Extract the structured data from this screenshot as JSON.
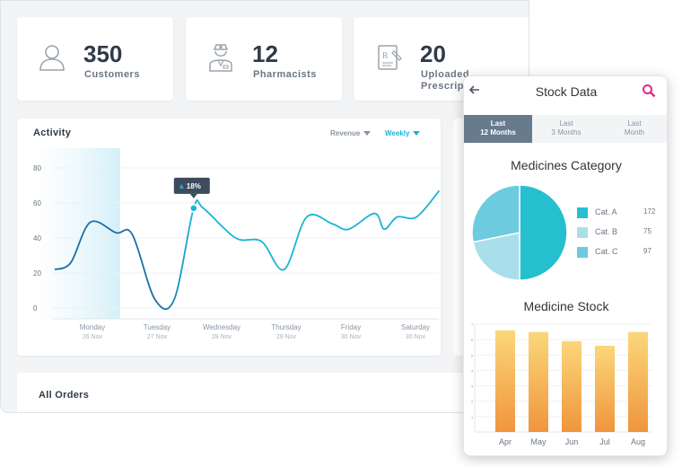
{
  "stats": [
    {
      "value": "350",
      "label": "Customers",
      "icon": "user-icon"
    },
    {
      "value": "12",
      "label": "Pharmacists",
      "icon": "pharmacist-icon"
    },
    {
      "value": "20",
      "label_lines": [
        "Uploaded",
        "Prescriptio"
      ],
      "icon": "prescription-icon"
    }
  ],
  "activity": {
    "title": "Activity",
    "metric_dropdown": "Revenue",
    "period_dropdown": "Weekly",
    "tooltip": "18%",
    "chart_data": {
      "type": "line",
      "x": [
        "Monday 26 Nov",
        "Tuesday 27 Nov",
        "Wednesday 28 Nov",
        "Thursday 29 Nov",
        "Friday 30 Nov",
        "Saturday 30 Nov"
      ],
      "tick_days": [
        "Monday",
        "Tuesday",
        "Wednesday",
        "Thursday",
        "Friday",
        "Saturday"
      ],
      "tick_dates": [
        "26 Nov",
        "27 Nov",
        "28 Nov",
        "29 Nov",
        "30 Nov",
        "30 Nov"
      ],
      "yticks": [
        "80",
        "60",
        "40",
        "20",
        "0"
      ],
      "ylim": [
        0,
        80
      ],
      "highlighted_index": 1,
      "points": [
        {
          "x": 0.0,
          "y": 22
        },
        {
          "x": 0.25,
          "y": 26
        },
        {
          "x": 0.55,
          "y": 49
        },
        {
          "x": 0.95,
          "y": 43
        },
        {
          "x": 1.2,
          "y": 42
        },
        {
          "x": 1.55,
          "y": 5
        },
        {
          "x": 1.85,
          "y": 5
        },
        {
          "x": 2.15,
          "y": 57
        },
        {
          "x": 2.3,
          "y": 57
        },
        {
          "x": 2.8,
          "y": 40
        },
        {
          "x": 3.2,
          "y": 38
        },
        {
          "x": 3.55,
          "y": 22
        },
        {
          "x": 3.9,
          "y": 52
        },
        {
          "x": 4.3,
          "y": 48
        },
        {
          "x": 4.55,
          "y": 45
        },
        {
          "x": 4.95,
          "y": 54
        },
        {
          "x": 5.1,
          "y": 45
        },
        {
          "x": 5.3,
          "y": 52
        },
        {
          "x": 5.6,
          "y": 52
        },
        {
          "x": 5.95,
          "y": 67
        }
      ],
      "colors": {
        "line": "#1ab3d8",
        "line_dark": "#1a6fa8"
      }
    }
  },
  "orders": {
    "title": "All Orders"
  },
  "phone": {
    "title": "Stock Data",
    "tabs": [
      {
        "line1": "Last",
        "line2": "12 Months",
        "active": true
      },
      {
        "line1": "Last",
        "line2": "3 Months",
        "active": false
      },
      {
        "line1": "Last",
        "line2": "Month",
        "active": false
      }
    ],
    "pie": {
      "title": "Medicines Category",
      "chart_data": {
        "type": "pie",
        "labels": [
          "Cat. A",
          "Cat. B",
          "Cat. C"
        ],
        "values": [
          172,
          75,
          97
        ],
        "colors": [
          "#26bfcf",
          "#a9dfea",
          "#6ccbde"
        ]
      }
    },
    "bars": {
      "title": "Medicine Stock",
      "chart_data": {
        "type": "bar",
        "categories": [
          "Apr",
          "May",
          "Jun",
          "Jul",
          "Aug"
        ],
        "values": [
          6.6,
          6.5,
          5.9,
          5.6,
          6.5
        ],
        "ylim": [
          0,
          7
        ],
        "yticks": [
          "7",
          "6",
          "5",
          "4",
          "3",
          "2",
          "1"
        ],
        "colors": {
          "top": "#fbd77a",
          "bottom": "#f0953d"
        }
      }
    }
  }
}
